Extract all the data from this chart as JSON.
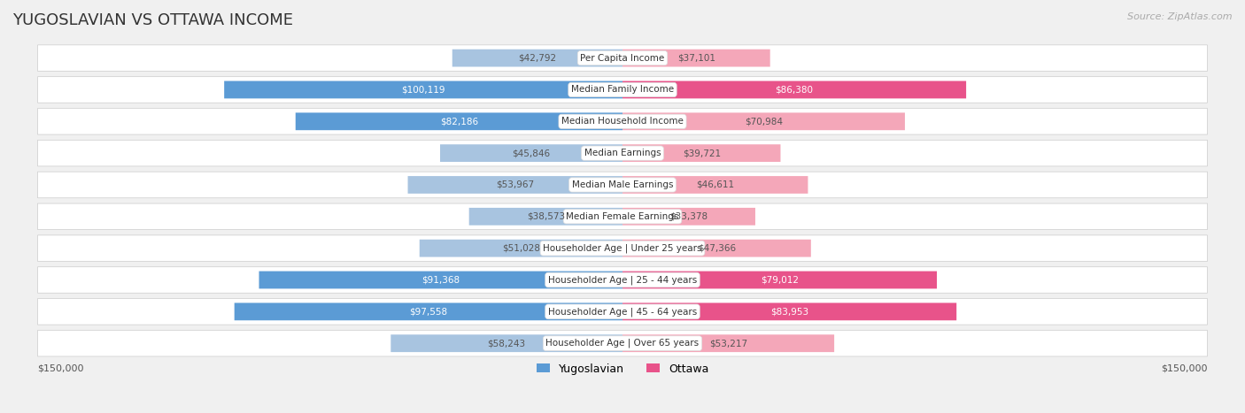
{
  "title": "YUGOSLAVIAN VS OTTAWA INCOME",
  "source": "Source: ZipAtlas.com",
  "max_value": 150000,
  "categories": [
    "Per Capita Income",
    "Median Family Income",
    "Median Household Income",
    "Median Earnings",
    "Median Male Earnings",
    "Median Female Earnings",
    "Householder Age | Under 25 years",
    "Householder Age | 25 - 44 years",
    "Householder Age | 45 - 64 years",
    "Householder Age | Over 65 years"
  ],
  "yugoslavian_values": [
    42792,
    100119,
    82186,
    45846,
    53967,
    38573,
    51028,
    91368,
    97558,
    58243
  ],
  "ottawa_values": [
    37101,
    86380,
    70984,
    39721,
    46611,
    33378,
    47366,
    79012,
    83953,
    53217
  ],
  "yugoslavian_labels": [
    "$42,792",
    "$100,119",
    "$82,186",
    "$45,846",
    "$53,967",
    "$38,573",
    "$51,028",
    "$91,368",
    "$97,558",
    "$58,243"
  ],
  "ottawa_labels": [
    "$37,101",
    "$86,380",
    "$70,984",
    "$39,721",
    "$46,611",
    "$33,378",
    "$47,366",
    "$79,012",
    "$83,953",
    "$53,217"
  ],
  "color_yugoslav_light": "#a8c4e0",
  "color_yugoslav_dark": "#5b9bd5",
  "color_ottawa_light": "#f4a7b9",
  "color_ottawa_dark": "#e8538a",
  "yugoslav_dark_threshold": 75000,
  "ottawa_dark_threshold": 75000,
  "background_color": "#f0f0f0",
  "row_bg_color": "#f8f8f8",
  "legend_yugoslav": "Yugoslavian",
  "legend_ottawa": "Ottawa"
}
